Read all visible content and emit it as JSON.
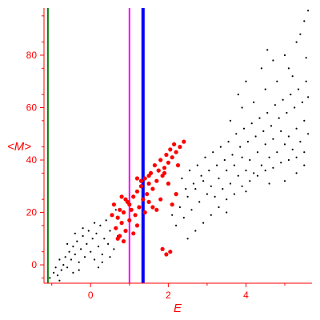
{
  "chart_data": {
    "type": "scatter",
    "title": "",
    "xlabel": "E",
    "ylabel": "<M>",
    "xlim": [
      -1.2,
      5.7
    ],
    "ylim": [
      -7,
      98
    ],
    "xticks": [
      0,
      2,
      4
    ],
    "yticks": [
      0,
      20,
      40,
      60,
      80
    ],
    "grid": false,
    "legend": "none",
    "colors": {
      "axis": "#ff0000",
      "tick_labels": "#ff0000",
      "small_points": "#000000",
      "large_points": "#ff0000",
      "line_green": "#008000",
      "line_magenta": "#ff00ff",
      "line_blue": "#0000ff"
    },
    "vertical_lines": [
      {
        "x": -1.1,
        "color": "#008000"
      },
      {
        "x": 1.0,
        "color": "#ff00ff"
      },
      {
        "x": 1.35,
        "color": "#0000ff"
      }
    ],
    "series": [
      {
        "marker": "small-black-dot",
        "points": [
          [
            -1.05,
            -5
          ],
          [
            -0.95,
            -3
          ],
          [
            -0.9,
            -1
          ],
          [
            -0.85,
            -4
          ],
          [
            -0.8,
            2
          ],
          [
            -0.75,
            -2
          ],
          [
            -0.7,
            0
          ],
          [
            -0.65,
            3
          ],
          [
            -0.6,
            -1
          ],
          [
            -0.55,
            5
          ],
          [
            -0.5,
            2
          ],
          [
            -0.45,
            7
          ],
          [
            -0.45,
            -3
          ],
          [
            -0.4,
            4
          ],
          [
            -0.35,
            9
          ],
          [
            -0.3,
            1
          ],
          [
            -0.25,
            6
          ],
          [
            -0.2,
            11
          ],
          [
            -0.15,
            3
          ],
          [
            -0.1,
            8
          ],
          [
            -0.05,
            13
          ],
          [
            0.0,
            5
          ],
          [
            0.05,
            10
          ],
          [
            0.1,
            2
          ],
          [
            0.15,
            12
          ],
          [
            0.2,
            7
          ],
          [
            0.25,
            15
          ],
          [
            0.3,
            4
          ],
          [
            0.35,
            10
          ],
          [
            0.4,
            17
          ],
          [
            0.45,
            8
          ],
          [
            0.5,
            13
          ],
          [
            0.55,
            19
          ],
          [
            0.6,
            6
          ],
          [
            0.65,
            21
          ],
          [
            0.7,
            11
          ],
          [
            -0.6,
            8
          ],
          [
            -0.4,
            12
          ],
          [
            -0.2,
            14
          ],
          [
            0.1,
            16
          ],
          [
            -0.8,
            -6
          ],
          [
            -0.3,
            -2
          ],
          [
            0.3,
            1
          ],
          [
            0.5,
            3
          ],
          [
            0.2,
            -1
          ],
          [
            2.1,
            19
          ],
          [
            2.2,
            15
          ],
          [
            2.3,
            22
          ],
          [
            2.4,
            18
          ],
          [
            2.5,
            26
          ],
          [
            2.6,
            21
          ],
          [
            2.7,
            29
          ],
          [
            2.8,
            24
          ],
          [
            2.9,
            32
          ],
          [
            3.0,
            27
          ],
          [
            2.35,
            33
          ],
          [
            2.45,
            29
          ],
          [
            2.55,
            36
          ],
          [
            2.65,
            31
          ],
          [
            2.75,
            38
          ],
          [
            2.85,
            34
          ],
          [
            2.95,
            41
          ],
          [
            3.05,
            36
          ],
          [
            3.15,
            43
          ],
          [
            3.25,
            38
          ],
          [
            3.1,
            30
          ],
          [
            3.2,
            26
          ],
          [
            3.3,
            33
          ],
          [
            3.4,
            29
          ],
          [
            3.5,
            36
          ],
          [
            3.6,
            31
          ],
          [
            3.7,
            38
          ],
          [
            3.8,
            34
          ],
          [
            3.9,
            41
          ],
          [
            4.0,
            36
          ],
          [
            3.35,
            45
          ],
          [
            3.45,
            40
          ],
          [
            3.55,
            47
          ],
          [
            3.65,
            42
          ],
          [
            3.75,
            50
          ],
          [
            3.85,
            45
          ],
          [
            3.95,
            52
          ],
          [
            4.05,
            47
          ],
          [
            4.15,
            54
          ],
          [
            4.25,
            49
          ],
          [
            4.1,
            40
          ],
          [
            4.2,
            35
          ],
          [
            4.3,
            43
          ],
          [
            4.4,
            38
          ],
          [
            4.5,
            46
          ],
          [
            4.6,
            41
          ],
          [
            4.7,
            48
          ],
          [
            4.8,
            43
          ],
          [
            4.9,
            51
          ],
          [
            5.0,
            46
          ],
          [
            4.35,
            56
          ],
          [
            4.45,
            51
          ],
          [
            4.55,
            58
          ],
          [
            4.65,
            53
          ],
          [
            4.75,
            61
          ],
          [
            4.85,
            56
          ],
          [
            4.95,
            63
          ],
          [
            5.05,
            58
          ],
          [
            5.15,
            65
          ],
          [
            5.25,
            60
          ],
          [
            5.1,
            49
          ],
          [
            5.2,
            44
          ],
          [
            5.3,
            52
          ],
          [
            5.4,
            47
          ],
          [
            5.5,
            55
          ],
          [
            5.6,
            50
          ],
          [
            5.35,
            67
          ],
          [
            5.45,
            62
          ],
          [
            5.55,
            70
          ],
          [
            5.6,
            64
          ],
          [
            2.5,
            10
          ],
          [
            2.7,
            13
          ],
          [
            2.9,
            16
          ],
          [
            3.1,
            19
          ],
          [
            3.3,
            22
          ],
          [
            3.5,
            25
          ],
          [
            3.7,
            27
          ],
          [
            3.9,
            30
          ],
          [
            4.1,
            32
          ],
          [
            4.3,
            34
          ],
          [
            4.5,
            36
          ],
          [
            4.7,
            37
          ],
          [
            4.9,
            39
          ],
          [
            5.1,
            40
          ],
          [
            5.3,
            41
          ],
          [
            5.5,
            43
          ],
          [
            3.6,
            55
          ],
          [
            3.9,
            60
          ],
          [
            4.2,
            62
          ],
          [
            4.5,
            67
          ],
          [
            4.8,
            70
          ],
          [
            5.1,
            75
          ],
          [
            5.3,
            85
          ],
          [
            5.4,
            88
          ],
          [
            5.6,
            97
          ],
          [
            5.5,
            93
          ],
          [
            4.4,
            75
          ],
          [
            3.8,
            65
          ],
          [
            4.0,
            70
          ],
          [
            5.0,
            80
          ],
          [
            4.7,
            78
          ],
          [
            5.2,
            72
          ],
          [
            5.55,
            79
          ],
          [
            4.55,
            82
          ],
          [
            5.0,
            32
          ],
          [
            5.3,
            35
          ],
          [
            5.5,
            38
          ],
          [
            4.6,
            31
          ],
          [
            3.5,
            20
          ],
          [
            4.0,
            28
          ]
        ]
      },
      {
        "marker": "large-red-dot",
        "points": [
          [
            0.65,
            14
          ],
          [
            0.7,
            18
          ],
          [
            0.75,
            11
          ],
          [
            0.8,
            16
          ],
          [
            0.85,
            20
          ],
          [
            0.9,
            13
          ],
          [
            0.95,
            24
          ],
          [
            1.0,
            17
          ],
          [
            1.05,
            21
          ],
          [
            1.1,
            26
          ],
          [
            1.15,
            19
          ],
          [
            1.2,
            28
          ],
          [
            1.25,
            22
          ],
          [
            1.3,
            30
          ],
          [
            1.35,
            25
          ],
          [
            1.4,
            33
          ],
          [
            1.45,
            27
          ],
          [
            1.5,
            31
          ],
          [
            1.55,
            35
          ],
          [
            1.6,
            29
          ],
          [
            1.65,
            38
          ],
          [
            1.7,
            32
          ],
          [
            1.75,
            36
          ],
          [
            1.8,
            40
          ],
          [
            1.85,
            34
          ],
          [
            1.9,
            37
          ],
          [
            1.95,
            42
          ],
          [
            2.0,
            39
          ],
          [
            2.05,
            44
          ],
          [
            2.1,
            41
          ],
          [
            2.15,
            46
          ],
          [
            2.2,
            43
          ],
          [
            2.25,
            38
          ],
          [
            2.3,
            45
          ],
          [
            0.8,
            26
          ],
          [
            0.9,
            25
          ],
          [
            1.0,
            23
          ],
          [
            1.2,
            33
          ],
          [
            1.3,
            32
          ],
          [
            1.5,
            34
          ],
          [
            1.9,
            35
          ],
          [
            2.0,
            31
          ],
          [
            2.2,
            27
          ],
          [
            1.7,
            21
          ],
          [
            1.8,
            25
          ],
          [
            1.6,
            22
          ],
          [
            0.7,
            10
          ],
          [
            0.85,
            9
          ],
          [
            1.1,
            12
          ],
          [
            1.2,
            15
          ],
          [
            0.55,
            19
          ],
          [
            0.6,
            23
          ],
          [
            0.75,
            21
          ],
          [
            1.4,
            20
          ],
          [
            1.5,
            24
          ],
          [
            2.1,
            23
          ],
          [
            1.85,
            6
          ],
          [
            1.95,
            4
          ],
          [
            2.05,
            5
          ],
          [
            2.4,
            47
          ]
        ]
      }
    ]
  }
}
